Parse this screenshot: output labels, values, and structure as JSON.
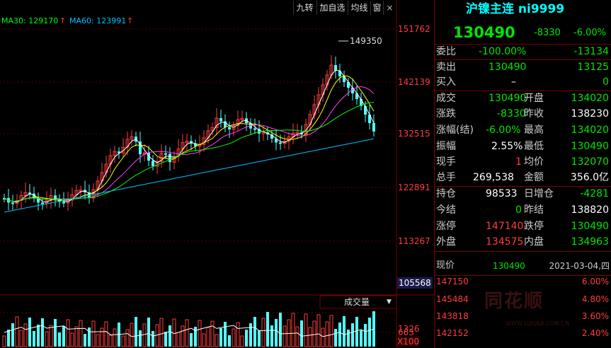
{
  "toolbar": {
    "btn1": "九转",
    "btn2": "加自选",
    "btn3": "均线",
    "btn4": "窗"
  },
  "ma": {
    "ma30_label": "MA30: 129170",
    "ma60_label": "MA60: 123991",
    "arrow": "↑",
    "ma30_color": "#00ff00",
    "ma60_color": "#00c0ff"
  },
  "price_axis": {
    "l1": "151762",
    "l2": "142139",
    "l3": "132515",
    "l4": "122891",
    "l5": "113267",
    "l6": "105568"
  },
  "peak_label": "149350",
  "volume": {
    "selector": "成交量",
    "dropdown": "▼",
    "v1": "1326",
    "v2": "663",
    "unit": "X100"
  },
  "quote": {
    "title": "沪镍主连 ni9999",
    "price": "130490",
    "change": "-8330",
    "change_pct": "-6.00%",
    "weibi_label": "委比",
    "weibi_pct": "-100.00%",
    "weibi_val": "-13134",
    "sell_label": "卖出",
    "sell_price": "130490",
    "sell_vol": "13125",
    "buy_label": "买入",
    "buy_price": "–",
    "buy_vol": "0",
    "deal_label": "成交",
    "deal": "130490",
    "open_label": "开盘",
    "open": "134020",
    "chg_label": "涨跌",
    "chg": "-8330",
    "prevclose_label": "昨收",
    "prevclose": "138230",
    "chgpct_label": "涨幅(结)",
    "chgpct": "-6.00%",
    "high_label": "最高",
    "high": "134020",
    "amp_label": "振幅",
    "amp": "2.55%",
    "low_label": "最低",
    "low": "130490",
    "cur_label": "现手",
    "cur": "1",
    "avg_label": "均价",
    "avg": "132070",
    "total_label": "总手",
    "total": "269,538",
    "amount_label": "金额",
    "amount": "356.0亿",
    "oi_label": "持仓",
    "oi": "98533",
    "oi_inc_label": "日增仓",
    "oi_inc": "-4281",
    "settle_label": "今结",
    "settle": "0",
    "prevsettle_label": "昨结",
    "prevsettle": "138820",
    "limitup_label": "涨停",
    "limitup": "147140",
    "limitdown_label": "跌停",
    "limitdown": "130490",
    "outer_label": "外盘",
    "outer": "134575",
    "inner_label": "内盘",
    "inner": "134963"
  },
  "bottom": {
    "now_label": "现价",
    "now_price": "130490",
    "date": "2021-03-04,四",
    "p1": "147150",
    "p2": "145484",
    "p3": "143818",
    "p4": "142152",
    "pc1": "6.00%",
    "pc2": "4.80%",
    "pc3": "3.60%",
    "pc4": "2.40%",
    "watermark": "同花顺",
    "watermark_url": "WWW.10JQKA.COM.CN"
  },
  "colors": {
    "up": "#ff3c3c",
    "down": "#54ffff",
    "ma5": "#ffffff",
    "ma10": "#ffff00",
    "ma20": "#ff40ff",
    "ma30": "#00ff00",
    "ma60": "#00c0ff"
  }
}
